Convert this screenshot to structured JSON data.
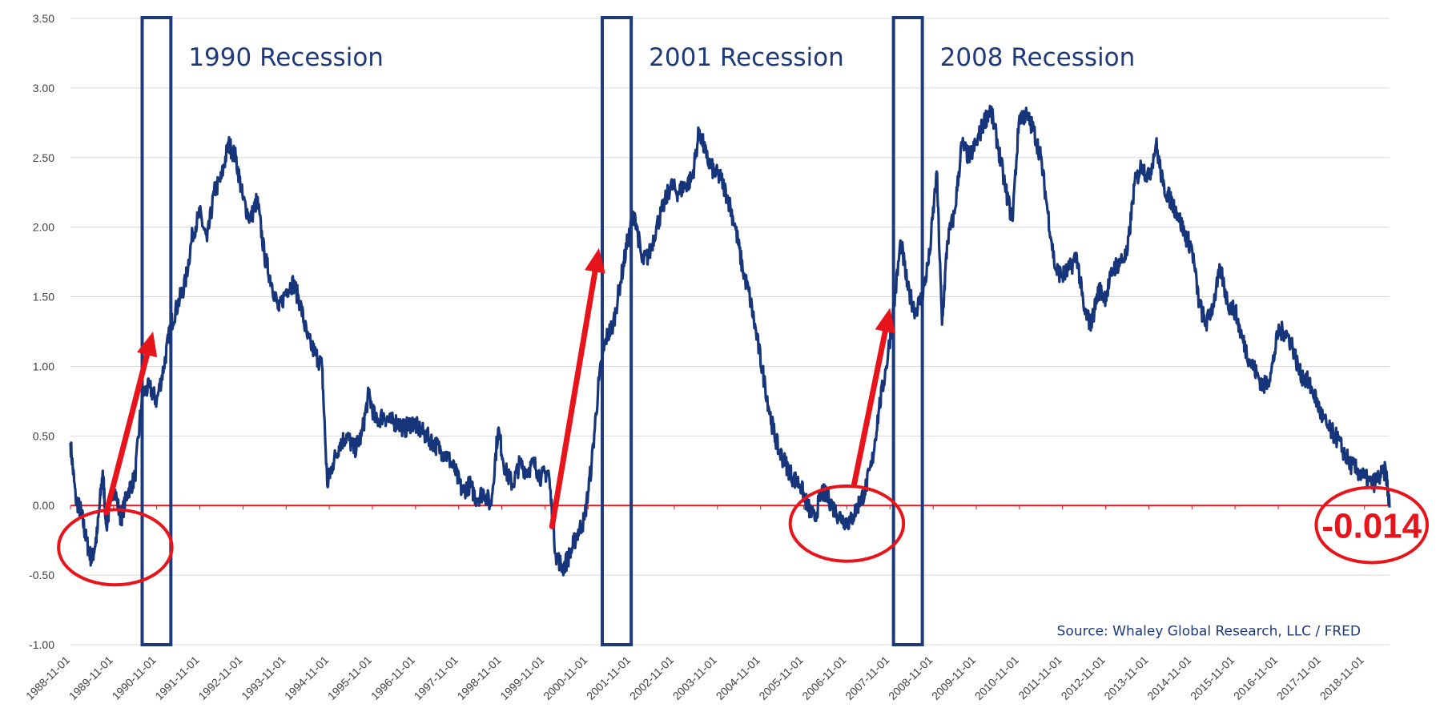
{
  "chart_data": {
    "type": "line",
    "title": "",
    "xlabel": "",
    "ylabel": "",
    "x_range": [
      "1988-11-01",
      "2019-06-01"
    ],
    "ylim": [
      -1.0,
      3.5
    ],
    "y_ticks": [
      -1.0,
      -0.5,
      0.0,
      0.5,
      1.0,
      1.5,
      2.0,
      2.5,
      3.0,
      3.5
    ],
    "y_tick_labels": [
      "-1.00",
      "-0.50",
      "0.00",
      "0.50",
      "1.00",
      "1.50",
      "2.00",
      "2.50",
      "3.00",
      "3.50"
    ],
    "x_tick_labels": [
      "1988-11-01",
      "1989-11-01",
      "1990-11-01",
      "1991-11-01",
      "1992-11-01",
      "1993-11-01",
      "1994-11-01",
      "1995-11-01",
      "1996-11-01",
      "1997-11-01",
      "1998-11-01",
      "1999-11-01",
      "2000-11-01",
      "2001-11-01",
      "2002-11-01",
      "2003-11-01",
      "2004-11-01",
      "2005-11-01",
      "2006-11-01",
      "2007-11-01",
      "2008-11-01",
      "2009-11-01",
      "2010-11-01",
      "2011-11-01",
      "2012-11-01",
      "2013-11-01",
      "2014-11-01",
      "2015-11-01",
      "2016-11-01",
      "2017-11-01",
      "2018-11-01"
    ],
    "grid": true,
    "series": [
      {
        "color": "#16357a",
        "points": [
          [
            "1988-11-01",
            0.45
          ],
          [
            "1988-12-15",
            0.05
          ],
          [
            "1989-02-01",
            -0.05
          ],
          [
            "1989-03-15",
            -0.25
          ],
          [
            "1989-05-01",
            -0.4
          ],
          [
            "1989-06-15",
            -0.2
          ],
          [
            "1989-08-01",
            0.25
          ],
          [
            "1989-09-01",
            -0.15
          ],
          [
            "1989-11-01",
            0.15
          ],
          [
            "1990-01-01",
            -0.1
          ],
          [
            "1990-03-01",
            0.1
          ],
          [
            "1990-05-01",
            0.2
          ],
          [
            "1990-07-01",
            0.8
          ],
          [
            "1990-09-01",
            0.85
          ],
          [
            "1990-11-01",
            0.75
          ],
          [
            "1991-01-01",
            1.0
          ],
          [
            "1991-03-01",
            1.3
          ],
          [
            "1991-05-01",
            1.45
          ],
          [
            "1991-07-01",
            1.6
          ],
          [
            "1991-09-01",
            1.95
          ],
          [
            "1991-11-01",
            2.1
          ],
          [
            "1992-01-01",
            1.9
          ],
          [
            "1992-03-01",
            2.25
          ],
          [
            "1992-05-01",
            2.35
          ],
          [
            "1992-07-01",
            2.6
          ],
          [
            "1992-09-01",
            2.5
          ],
          [
            "1992-11-01",
            2.2
          ],
          [
            "1993-01-01",
            2.05
          ],
          [
            "1993-03-01",
            2.2
          ],
          [
            "1993-05-01",
            1.8
          ],
          [
            "1993-07-01",
            1.6
          ],
          [
            "1993-09-01",
            1.4
          ],
          [
            "1993-11-01",
            1.55
          ],
          [
            "1994-01-01",
            1.6
          ],
          [
            "1994-03-01",
            1.45
          ],
          [
            "1994-05-01",
            1.2
          ],
          [
            "1994-07-01",
            1.1
          ],
          [
            "1994-09-01",
            1.0
          ],
          [
            "1994-10-15",
            0.15
          ],
          [
            "1994-12-01",
            0.3
          ],
          [
            "1995-02-01",
            0.45
          ],
          [
            "1995-04-01",
            0.5
          ],
          [
            "1995-06-01",
            0.4
          ],
          [
            "1995-08-01",
            0.5
          ],
          [
            "1995-10-01",
            0.8
          ],
          [
            "1995-12-01",
            0.6
          ],
          [
            "1996-02-01",
            0.65
          ],
          [
            "1996-04-01",
            0.6
          ],
          [
            "1996-06-01",
            0.6
          ],
          [
            "1996-08-01",
            0.55
          ],
          [
            "1996-10-01",
            0.6
          ],
          [
            "1996-12-01",
            0.55
          ],
          [
            "1997-02-01",
            0.5
          ],
          [
            "1997-04-01",
            0.45
          ],
          [
            "1997-06-01",
            0.4
          ],
          [
            "1997-08-01",
            0.35
          ],
          [
            "1997-10-01",
            0.25
          ],
          [
            "1997-12-01",
            0.1
          ],
          [
            "1998-02-01",
            0.15
          ],
          [
            "1998-04-01",
            0.05
          ],
          [
            "1998-06-01",
            0.1
          ],
          [
            "1998-08-01",
            0.0
          ],
          [
            "1998-10-01",
            0.55
          ],
          [
            "1998-12-01",
            0.25
          ],
          [
            "1999-02-01",
            0.15
          ],
          [
            "1999-04-01",
            0.3
          ],
          [
            "1999-06-01",
            0.25
          ],
          [
            "1999-08-01",
            0.3
          ],
          [
            "1999-10-01",
            0.2
          ],
          [
            "1999-12-01",
            0.25
          ],
          [
            "2000-02-01",
            -0.35
          ],
          [
            "2000-04-01",
            -0.45
          ],
          [
            "2000-06-01",
            -0.35
          ],
          [
            "2000-08-01",
            -0.2
          ],
          [
            "2000-10-01",
            -0.1
          ],
          [
            "2000-12-01",
            0.3
          ],
          [
            "2001-02-01",
            0.9
          ],
          [
            "2001-04-01",
            1.2
          ],
          [
            "2001-06-01",
            1.3
          ],
          [
            "2001-08-01",
            1.6
          ],
          [
            "2001-10-01",
            1.9
          ],
          [
            "2001-12-01",
            2.1
          ],
          [
            "2002-02-01",
            1.75
          ],
          [
            "2002-04-01",
            1.8
          ],
          [
            "2002-06-01",
            2.0
          ],
          [
            "2002-08-01",
            2.15
          ],
          [
            "2002-10-01",
            2.3
          ],
          [
            "2002-12-01",
            2.25
          ],
          [
            "2003-02-01",
            2.3
          ],
          [
            "2003-04-01",
            2.35
          ],
          [
            "2003-06-01",
            2.7
          ],
          [
            "2003-08-01",
            2.5
          ],
          [
            "2003-10-01",
            2.4
          ],
          [
            "2003-12-01",
            2.35
          ],
          [
            "2004-02-01",
            2.2
          ],
          [
            "2004-04-01",
            2.0
          ],
          [
            "2004-06-01",
            1.7
          ],
          [
            "2004-08-01",
            1.5
          ],
          [
            "2004-10-01",
            1.2
          ],
          [
            "2004-12-01",
            0.9
          ],
          [
            "2005-02-01",
            0.6
          ],
          [
            "2005-04-01",
            0.4
          ],
          [
            "2005-06-01",
            0.3
          ],
          [
            "2005-08-01",
            0.2
          ],
          [
            "2005-10-01",
            0.15
          ],
          [
            "2005-12-01",
            0.0
          ],
          [
            "2006-02-01",
            -0.1
          ],
          [
            "2006-04-01",
            0.1
          ],
          [
            "2006-06-01",
            0.05
          ],
          [
            "2006-08-01",
            -0.05
          ],
          [
            "2006-10-01",
            -0.1
          ],
          [
            "2006-12-01",
            -0.12
          ],
          [
            "2007-02-01",
            0.0
          ],
          [
            "2007-04-01",
            0.1
          ],
          [
            "2007-06-01",
            0.3
          ],
          [
            "2007-08-01",
            0.7
          ],
          [
            "2007-10-01",
            1.0
          ],
          [
            "2007-12-01",
            1.4
          ],
          [
            "2008-02-01",
            1.9
          ],
          [
            "2008-04-01",
            1.55
          ],
          [
            "2008-06-01",
            1.4
          ],
          [
            "2008-08-01",
            1.5
          ],
          [
            "2008-10-01",
            1.8
          ],
          [
            "2008-12-01",
            2.4
          ],
          [
            "2009-01-15",
            1.3
          ],
          [
            "2009-03-01",
            1.9
          ],
          [
            "2009-05-01",
            2.1
          ],
          [
            "2009-07-01",
            2.6
          ],
          [
            "2009-09-01",
            2.5
          ],
          [
            "2009-11-01",
            2.6
          ],
          [
            "2010-01-01",
            2.75
          ],
          [
            "2010-03-01",
            2.85
          ],
          [
            "2010-05-01",
            2.6
          ],
          [
            "2010-07-01",
            2.3
          ],
          [
            "2010-09-01",
            2.05
          ],
          [
            "2010-11-01",
            2.8
          ],
          [
            "2011-01-01",
            2.8
          ],
          [
            "2011-03-01",
            2.7
          ],
          [
            "2011-05-01",
            2.5
          ],
          [
            "2011-07-01",
            2.1
          ],
          [
            "2011-09-01",
            1.7
          ],
          [
            "2011-11-01",
            1.65
          ],
          [
            "2012-01-01",
            1.7
          ],
          [
            "2012-03-01",
            1.8
          ],
          [
            "2012-05-01",
            1.4
          ],
          [
            "2012-07-01",
            1.3
          ],
          [
            "2012-09-01",
            1.55
          ],
          [
            "2012-11-01",
            1.5
          ],
          [
            "2013-01-01",
            1.7
          ],
          [
            "2013-03-01",
            1.75
          ],
          [
            "2013-05-01",
            1.8
          ],
          [
            "2013-07-01",
            2.3
          ],
          [
            "2013-09-01",
            2.45
          ],
          [
            "2013-11-01",
            2.35
          ],
          [
            "2014-01-01",
            2.6
          ],
          [
            "2014-03-01",
            2.3
          ],
          [
            "2014-05-01",
            2.2
          ],
          [
            "2014-07-01",
            2.1
          ],
          [
            "2014-09-01",
            1.95
          ],
          [
            "2014-11-01",
            1.85
          ],
          [
            "2015-01-01",
            1.45
          ],
          [
            "2015-03-01",
            1.3
          ],
          [
            "2015-05-01",
            1.45
          ],
          [
            "2015-07-01",
            1.7
          ],
          [
            "2015-09-01",
            1.45
          ],
          [
            "2015-11-01",
            1.4
          ],
          [
            "2016-01-01",
            1.2
          ],
          [
            "2016-03-01",
            1.05
          ],
          [
            "2016-05-01",
            0.95
          ],
          [
            "2016-07-01",
            0.85
          ],
          [
            "2016-09-01",
            0.95
          ],
          [
            "2016-11-01",
            1.25
          ],
          [
            "2017-01-01",
            1.25
          ],
          [
            "2017-03-01",
            1.15
          ],
          [
            "2017-05-01",
            0.95
          ],
          [
            "2017-07-01",
            0.9
          ],
          [
            "2017-09-01",
            0.8
          ],
          [
            "2017-11-01",
            0.65
          ],
          [
            "2018-01-01",
            0.55
          ],
          [
            "2018-03-01",
            0.5
          ],
          [
            "2018-05-01",
            0.4
          ],
          [
            "2018-07-01",
            0.3
          ],
          [
            "2018-09-01",
            0.25
          ],
          [
            "2018-11-01",
            0.2
          ],
          [
            "2019-01-01",
            0.15
          ],
          [
            "2019-03-01",
            0.2
          ],
          [
            "2019-05-01",
            0.25
          ],
          [
            "2019-06-01",
            -0.014
          ]
        ]
      }
    ],
    "reference_line": {
      "y": 0.0,
      "color": "#e8141c"
    },
    "recessions": [
      {
        "label": "1990 Recession",
        "start": "1990-07-01",
        "end": "1991-03-01"
      },
      {
        "label": "2001 Recession",
        "start": "2001-03-01",
        "end": "2001-11-01"
      },
      {
        "label": "2008 Recession",
        "start": "2007-12-01",
        "end": "2008-08-01"
      }
    ],
    "arrows": [
      {
        "from": [
          "1989-09-01",
          -0.05
        ],
        "to": [
          "1990-10-01",
          1.25
        ]
      },
      {
        "from": [
          "2000-01-01",
          -0.15
        ],
        "to": [
          "2001-02-01",
          1.85
        ]
      },
      {
        "from": [
          "2007-01-01",
          0.15
        ],
        "to": [
          "2007-11-01",
          1.42
        ]
      }
    ],
    "circles": [
      {
        "center": [
          "1989-11-15",
          -0.3
        ],
        "rx_days": 480,
        "ry": 0.27
      },
      {
        "center": [
          "2006-11-01",
          -0.13
        ],
        "rx_days": 480,
        "ry": 0.27
      },
      {
        "center": [
          "2019-01-01",
          -0.14
        ],
        "rx_days": 470,
        "ry": 0.27
      }
    ],
    "annotations": {
      "last_value": "-0.014",
      "source": "Source: Whaley Global Research, LLC / FRED"
    },
    "colors": {
      "line": "#16357a",
      "recession_box": "#1f3a7a",
      "highlight": "#e8141c",
      "grid": "#d9d9d9"
    }
  }
}
